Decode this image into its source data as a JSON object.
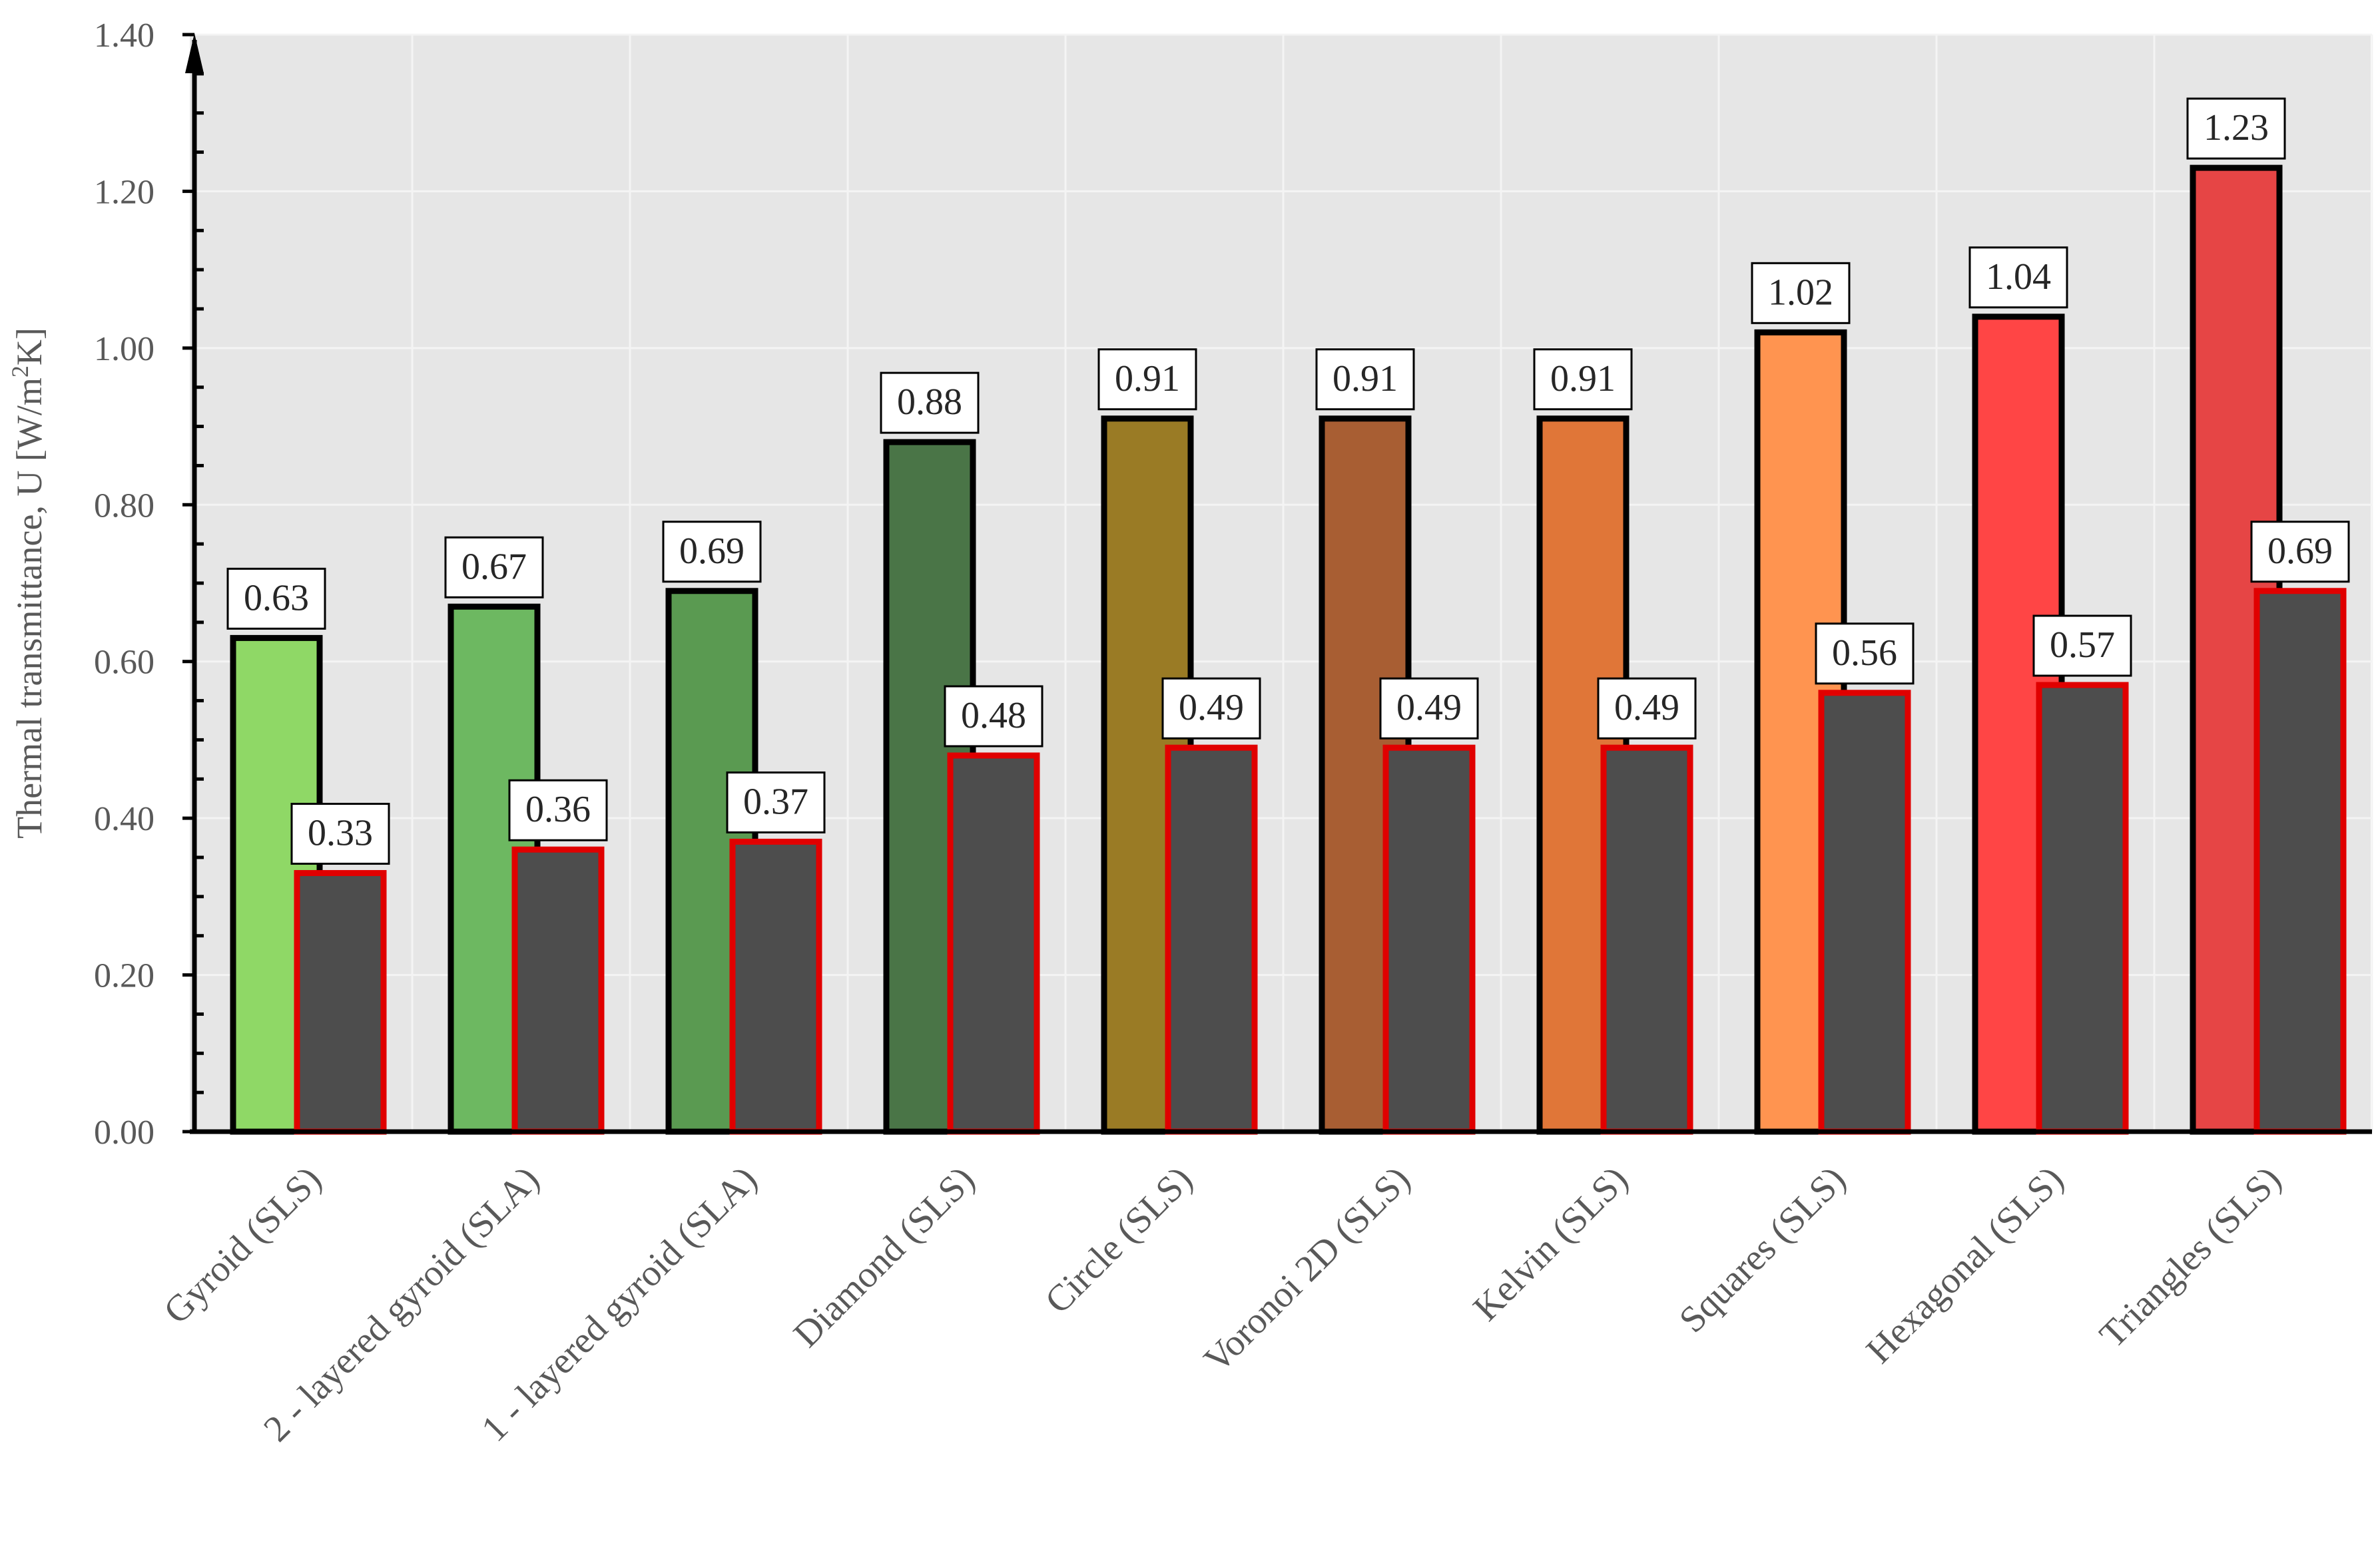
{
  "chart_data": {
    "type": "bar",
    "title": "",
    "ylabel_main": "Thermal transmittance, U [W/m",
    "ylabel_sup": "2",
    "ylabel_end": "K]",
    "xlabel": "",
    "ylim": [
      0,
      1.4
    ],
    "yticks": [
      "0.00",
      "0.20",
      "0.40",
      "0.60",
      "0.80",
      "1.00",
      "1.20",
      "1.40"
    ],
    "grid": true,
    "categories": [
      "Gyroid (SLS)",
      "2 - layered gyroid (SLA)",
      "1 - layered gyroid (SLA)",
      "Diamond (SLS)",
      "Circle (SLS)",
      "Voronoi 2D (SLS)",
      "Kelvin (SLS)",
      "Squares (SLS)",
      "Hexagonal (SLS)",
      "Triangles (SLS)"
    ],
    "series": [
      {
        "values": [
          0.63,
          0.67,
          0.69,
          0.88,
          0.91,
          0.91,
          0.91,
          1.02,
          1.04,
          1.23
        ],
        "labels": [
          "0.63",
          "0.67",
          "0.69",
          "0.88",
          "0.91",
          "0.91",
          "0.91",
          "1.02",
          "1.04",
          "1.23"
        ],
        "colors": [
          "#8fd866",
          "#6db861",
          "#5a9a51",
          "#4a7547",
          "#9a7b25",
          "#a85e33",
          "#e07638",
          "#ff9450",
          "#ff4545",
          "#e64545"
        ],
        "border": "#000000"
      },
      {
        "values": [
          0.33,
          0.36,
          0.37,
          0.48,
          0.49,
          0.49,
          0.49,
          0.56,
          0.57,
          0.69
        ],
        "labels": [
          "0.33",
          "0.36",
          "0.37",
          "0.48",
          "0.49",
          "0.49",
          "0.49",
          "0.56",
          "0.57",
          "0.69"
        ],
        "color": "#4d4d4d",
        "border": "#e00000"
      }
    ],
    "plot_background": "#e6e6e6",
    "grid_color": "#f4f4f4"
  }
}
